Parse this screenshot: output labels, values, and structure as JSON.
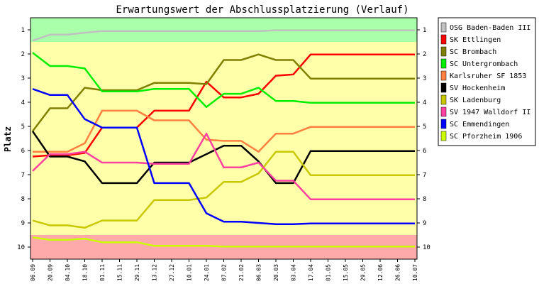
{
  "chart_data": {
    "type": "line",
    "title": "Erwartungswert der Abschlussplatzierung (Verlauf)",
    "ylabel": "Platz",
    "xlabel": "",
    "ylim": [
      0.5,
      10.5
    ],
    "y_ticks": [
      1,
      2,
      3,
      4,
      5,
      6,
      7,
      8,
      9,
      10
    ],
    "inverted_y": true,
    "grid": false,
    "legend_position": "right",
    "x": [
      "06.09",
      "20.09",
      "04.10",
      "18.10",
      "01.11",
      "15.11",
      "29.11",
      "13.12",
      "27.12",
      "10.01",
      "24.01",
      "07.02",
      "21.02",
      "06.03",
      "20.03",
      "03.04",
      "17.04",
      "01.05",
      "15.05",
      "29.05",
      "12.06",
      "26.06",
      "10.07"
    ],
    "zones": [
      {
        "from": 0.5,
        "to": 1.5,
        "color": "#aaffaa"
      },
      {
        "from": 1.5,
        "to": 9.5,
        "color": "#ffffaa"
      },
      {
        "from": 9.5,
        "to": 10.5,
        "color": "#ffaaaa"
      }
    ],
    "series": [
      {
        "name": "OSG Baden-Baden III",
        "color": "#c0c0c0",
        "values": [
          1.45,
          1.2,
          1.2,
          1.12,
          1.05,
          1.05,
          1.05,
          1.05,
          1.05,
          1.05,
          1.05,
          1.05,
          1.05,
          1.05,
          1.02,
          1.02,
          1.02,
          1.02,
          1.02,
          1.02,
          1.02,
          1.02,
          1.02
        ]
      },
      {
        "name": "SK Ettlingen",
        "color": "#ff0000",
        "values": [
          6.25,
          6.2,
          6.2,
          6.1,
          5.05,
          5.05,
          5.05,
          4.35,
          4.35,
          4.35,
          3.15,
          3.8,
          3.8,
          3.65,
          2.9,
          2.85,
          2.02,
          2.02,
          2.02,
          2.02,
          2.02,
          2.02,
          2.02
        ]
      },
      {
        "name": "SC Brombach",
        "color": "#808000",
        "values": [
          5.2,
          4.25,
          4.25,
          3.4,
          3.5,
          3.5,
          3.5,
          3.2,
          3.2,
          3.2,
          3.25,
          2.25,
          2.25,
          2.02,
          2.25,
          2.25,
          3.02,
          3.02,
          3.02,
          3.02,
          3.02,
          3.02,
          3.02
        ]
      },
      {
        "name": "SC Untergrombach",
        "color": "#00ee00",
        "values": [
          1.95,
          2.5,
          2.5,
          2.6,
          3.55,
          3.55,
          3.55,
          3.45,
          3.45,
          3.45,
          4.2,
          3.65,
          3.65,
          3.4,
          3.95,
          3.95,
          4.02,
          4.02,
          4.02,
          4.02,
          4.02,
          4.02,
          4.02
        ]
      },
      {
        "name": "Karlsruher SF 1853",
        "color": "#ff8040",
        "values": [
          6.05,
          6.05,
          6.05,
          5.7,
          4.35,
          4.35,
          4.35,
          4.75,
          4.75,
          4.75,
          5.55,
          5.6,
          5.6,
          6.05,
          5.3,
          5.3,
          5.02,
          5.02,
          5.02,
          5.02,
          5.02,
          5.02,
          5.02
        ]
      },
      {
        "name": "SV Hockenheim",
        "color": "#000000",
        "values": [
          5.2,
          6.25,
          6.25,
          6.45,
          7.35,
          7.35,
          7.35,
          6.5,
          6.5,
          6.5,
          6.15,
          5.8,
          5.8,
          6.45,
          7.35,
          7.35,
          6.02,
          6.02,
          6.02,
          6.02,
          6.02,
          6.02,
          6.02
        ]
      },
      {
        "name": "SK Ladenburg",
        "color": "#c8c800",
        "values": [
          8.9,
          9.1,
          9.1,
          9.2,
          8.9,
          8.9,
          8.9,
          8.05,
          8.05,
          8.05,
          7.95,
          7.3,
          7.3,
          6.95,
          6.05,
          6.05,
          7.02,
          7.02,
          7.02,
          7.02,
          7.02,
          7.02,
          7.02
        ]
      },
      {
        "name": "SV 1947 Walldorf II",
        "color": "#ff40a0",
        "values": [
          6.85,
          6.15,
          6.15,
          6.05,
          6.5,
          6.5,
          6.5,
          6.55,
          6.55,
          6.55,
          5.3,
          6.7,
          6.7,
          6.5,
          7.25,
          7.25,
          8.02,
          8.02,
          8.02,
          8.02,
          8.02,
          8.02,
          8.02
        ]
      },
      {
        "name": "SC Emmendingen",
        "color": "#0000ff",
        "values": [
          3.45,
          3.7,
          3.7,
          4.7,
          5.05,
          5.05,
          5.05,
          7.35,
          7.35,
          7.35,
          8.6,
          8.95,
          8.95,
          9.0,
          9.05,
          9.05,
          9.02,
          9.02,
          9.02,
          9.02,
          9.02,
          9.02,
          9.02
        ]
      },
      {
        "name": "SC Pforzheim 1906",
        "color": "#ccff00",
        "values": [
          9.6,
          9.7,
          9.7,
          9.65,
          9.8,
          9.8,
          9.8,
          9.95,
          9.95,
          9.95,
          9.95,
          9.98,
          9.98,
          9.98,
          9.98,
          9.98,
          9.98,
          9.98,
          9.98,
          9.98,
          9.98,
          9.98,
          9.98
        ]
      }
    ]
  }
}
